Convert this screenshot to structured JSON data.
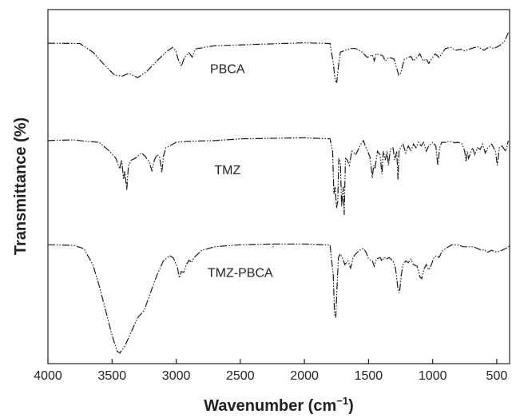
{
  "chart_data": {
    "type": "line",
    "title": "",
    "xlabel_main": "Wavenumber (cm",
    "xlabel_sup": "−1",
    "xlabel_end": ")",
    "ylabel": "Transmittance (%)",
    "xlim": [
      4000,
      400
    ],
    "x_reversed": true,
    "y_ticks_shown": false,
    "grid": false,
    "legend": "none",
    "x_ticks": [
      4000,
      3500,
      3000,
      2500,
      2000,
      1500,
      1000,
      500
    ],
    "x_tick_labels": [
      "4000",
      "3500",
      "3000",
      "2500",
      "2000",
      "1500",
      "1000",
      "500"
    ],
    "series_labels": [
      {
        "text": "PBCA",
        "x": 2600,
        "y": 0.82
      },
      {
        "text": "TMZ",
        "x": 2600,
        "y": 0.535
      },
      {
        "text": "TMZ-PBCA",
        "x": 2500,
        "y": 0.245
      }
    ],
    "series": [
      {
        "name": "PBCA",
        "points": [
          [
            4000,
            0.905
          ],
          [
            3750,
            0.904
          ],
          [
            3650,
            0.88
          ],
          [
            3550,
            0.84
          ],
          [
            3480,
            0.815
          ],
          [
            3420,
            0.812
          ],
          [
            3370,
            0.82
          ],
          [
            3300,
            0.808
          ],
          [
            3230,
            0.825
          ],
          [
            3150,
            0.855
          ],
          [
            3080,
            0.88
          ],
          [
            3030,
            0.893
          ],
          [
            3005,
            0.885
          ],
          [
            2985,
            0.86
          ],
          [
            2960,
            0.84
          ],
          [
            2935,
            0.865
          ],
          [
            2900,
            0.878
          ],
          [
            2875,
            0.866
          ],
          [
            2850,
            0.889
          ],
          [
            2700,
            0.898
          ],
          [
            2000,
            0.906
          ],
          [
            1800,
            0.904
          ],
          [
            1775,
            0.85
          ],
          [
            1760,
            0.8
          ],
          [
            1748,
            0.795
          ],
          [
            1735,
            0.84
          ],
          [
            1720,
            0.88
          ],
          [
            1680,
            0.885
          ],
          [
            1640,
            0.89
          ],
          [
            1600,
            0.89
          ],
          [
            1550,
            0.88
          ],
          [
            1510,
            0.865
          ],
          [
            1470,
            0.872
          ],
          [
            1455,
            0.855
          ],
          [
            1440,
            0.875
          ],
          [
            1390,
            0.87
          ],
          [
            1370,
            0.855
          ],
          [
            1340,
            0.865
          ],
          [
            1300,
            0.86
          ],
          [
            1265,
            0.815
          ],
          [
            1250,
            0.82
          ],
          [
            1220,
            0.86
          ],
          [
            1170,
            0.868
          ],
          [
            1150,
            0.855
          ],
          [
            1130,
            0.862
          ],
          [
            1100,
            0.875
          ],
          [
            1075,
            0.855
          ],
          [
            1050,
            0.86
          ],
          [
            1030,
            0.848
          ],
          [
            1010,
            0.86
          ],
          [
            980,
            0.875
          ],
          [
            950,
            0.865
          ],
          [
            930,
            0.875
          ],
          [
            900,
            0.89
          ],
          [
            860,
            0.893
          ],
          [
            820,
            0.885
          ],
          [
            780,
            0.888
          ],
          [
            750,
            0.883
          ],
          [
            700,
            0.89
          ],
          [
            650,
            0.895
          ],
          [
            600,
            0.885
          ],
          [
            560,
            0.895
          ],
          [
            520,
            0.89
          ],
          [
            480,
            0.898
          ],
          [
            440,
            0.91
          ],
          [
            410,
            0.935
          ]
        ]
      },
      {
        "name": "TMZ",
        "points": [
          [
            4000,
            0.63
          ],
          [
            3800,
            0.632
          ],
          [
            3700,
            0.628
          ],
          [
            3600,
            0.625
          ],
          [
            3520,
            0.6
          ],
          [
            3470,
            0.58
          ],
          [
            3440,
            0.55
          ],
          [
            3425,
            0.575
          ],
          [
            3410,
            0.52
          ],
          [
            3400,
            0.545
          ],
          [
            3385,
            0.49
          ],
          [
            3372,
            0.56
          ],
          [
            3350,
            0.575
          ],
          [
            3320,
            0.58
          ],
          [
            3270,
            0.595
          ],
          [
            3240,
            0.585
          ],
          [
            3210,
            0.57
          ],
          [
            3190,
            0.545
          ],
          [
            3170,
            0.575
          ],
          [
            3150,
            0.59
          ],
          [
            3130,
            0.585
          ],
          [
            3112,
            0.54
          ],
          [
            3100,
            0.585
          ],
          [
            3080,
            0.61
          ],
          [
            3000,
            0.625
          ],
          [
            2900,
            0.628
          ],
          [
            2700,
            0.63
          ],
          [
            2500,
            0.635
          ],
          [
            2000,
            0.638
          ],
          [
            1800,
            0.635
          ],
          [
            1780,
            0.6
          ],
          [
            1770,
            0.48
          ],
          [
            1760,
            0.5
          ],
          [
            1750,
            0.44
          ],
          [
            1740,
            0.46
          ],
          [
            1732,
            0.58
          ],
          [
            1720,
            0.57
          ],
          [
            1710,
            0.445
          ],
          [
            1698,
            0.5
          ],
          [
            1690,
            0.42
          ],
          [
            1680,
            0.58
          ],
          [
            1665,
            0.575
          ],
          [
            1650,
            0.56
          ],
          [
            1630,
            0.6
          ],
          [
            1600,
            0.59
          ],
          [
            1560,
            0.62
          ],
          [
            1540,
            0.63
          ],
          [
            1520,
            0.61
          ],
          [
            1490,
            0.585
          ],
          [
            1470,
            0.525
          ],
          [
            1460,
            0.56
          ],
          [
            1450,
            0.55
          ],
          [
            1430,
            0.6
          ],
          [
            1410,
            0.59
          ],
          [
            1395,
            0.535
          ],
          [
            1385,
            0.6
          ],
          [
            1370,
            0.575
          ],
          [
            1355,
            0.6
          ],
          [
            1345,
            0.56
          ],
          [
            1330,
            0.605
          ],
          [
            1310,
            0.61
          ],
          [
            1295,
            0.575
          ],
          [
            1280,
            0.6
          ],
          [
            1270,
            0.52
          ],
          [
            1262,
            0.6
          ],
          [
            1250,
            0.61
          ],
          [
            1230,
            0.62
          ],
          [
            1210,
            0.595
          ],
          [
            1190,
            0.615
          ],
          [
            1170,
            0.6
          ],
          [
            1150,
            0.62
          ],
          [
            1130,
            0.61
          ],
          [
            1110,
            0.625
          ],
          [
            1090,
            0.615
          ],
          [
            1070,
            0.625
          ],
          [
            1050,
            0.6
          ],
          [
            1030,
            0.615
          ],
          [
            1000,
            0.625
          ],
          [
            975,
            0.615
          ],
          [
            960,
            0.56
          ],
          [
            945,
            0.61
          ],
          [
            930,
            0.625
          ],
          [
            900,
            0.625
          ],
          [
            880,
            0.627
          ],
          [
            850,
            0.627
          ],
          [
            830,
            0.624
          ],
          [
            800,
            0.625
          ],
          [
            770,
            0.62
          ],
          [
            750,
            0.6
          ],
          [
            740,
            0.57
          ],
          [
            730,
            0.6
          ],
          [
            720,
            0.58
          ],
          [
            700,
            0.6
          ],
          [
            690,
            0.61
          ],
          [
            670,
            0.59
          ],
          [
            650,
            0.61
          ],
          [
            630,
            0.605
          ],
          [
            610,
            0.62
          ],
          [
            590,
            0.595
          ],
          [
            570,
            0.61
          ],
          [
            540,
            0.62
          ],
          [
            510,
            0.6
          ],
          [
            495,
            0.56
          ],
          [
            480,
            0.61
          ],
          [
            460,
            0.615
          ],
          [
            430,
            0.6
          ],
          [
            410,
            0.63
          ]
        ]
      },
      {
        "name": "TMZ-PBCA",
        "points": [
          [
            4000,
            0.336
          ],
          [
            3800,
            0.334
          ],
          [
            3720,
            0.325
          ],
          [
            3650,
            0.28
          ],
          [
            3600,
            0.22
          ],
          [
            3550,
            0.15
          ],
          [
            3500,
            0.08
          ],
          [
            3460,
            0.035
          ],
          [
            3440,
            0.03
          ],
          [
            3400,
            0.05
          ],
          [
            3350,
            0.09
          ],
          [
            3300,
            0.13
          ],
          [
            3250,
            0.15
          ],
          [
            3200,
            0.2
          ],
          [
            3150,
            0.25
          ],
          [
            3100,
            0.29
          ],
          [
            3050,
            0.305
          ],
          [
            3020,
            0.298
          ],
          [
            2990,
            0.27
          ],
          [
            2975,
            0.242
          ],
          [
            2960,
            0.26
          ],
          [
            2940,
            0.258
          ],
          [
            2920,
            0.28
          ],
          [
            2900,
            0.292
          ],
          [
            2880,
            0.285
          ],
          [
            2860,
            0.3
          ],
          [
            2800,
            0.32
          ],
          [
            2700,
            0.33
          ],
          [
            2500,
            0.336
          ],
          [
            2250,
            0.338
          ],
          [
            2245,
            0.33
          ],
          [
            2240,
            0.338
          ],
          [
            2000,
            0.338
          ],
          [
            1800,
            0.335
          ],
          [
            1775,
            0.25
          ],
          [
            1765,
            0.14
          ],
          [
            1755,
            0.13
          ],
          [
            1748,
            0.2
          ],
          [
            1735,
            0.3
          ],
          [
            1720,
            0.31
          ],
          [
            1700,
            0.295
          ],
          [
            1685,
            0.28
          ],
          [
            1660,
            0.29
          ],
          [
            1640,
            0.27
          ],
          [
            1620,
            0.3
          ],
          [
            1600,
            0.31
          ],
          [
            1570,
            0.32
          ],
          [
            1540,
            0.325
          ],
          [
            1520,
            0.315
          ],
          [
            1500,
            0.295
          ],
          [
            1470,
            0.29
          ],
          [
            1455,
            0.275
          ],
          [
            1440,
            0.295
          ],
          [
            1410,
            0.3
          ],
          [
            1395,
            0.29
          ],
          [
            1380,
            0.3
          ],
          [
            1360,
            0.295
          ],
          [
            1340,
            0.3
          ],
          [
            1310,
            0.29
          ],
          [
            1290,
            0.27
          ],
          [
            1270,
            0.21
          ],
          [
            1258,
            0.2
          ],
          [
            1245,
            0.25
          ],
          [
            1230,
            0.28
          ],
          [
            1210,
            0.29
          ],
          [
            1190,
            0.285
          ],
          [
            1170,
            0.295
          ],
          [
            1150,
            0.28
          ],
          [
            1120,
            0.275
          ],
          [
            1100,
            0.245
          ],
          [
            1085,
            0.24
          ],
          [
            1070,
            0.265
          ],
          [
            1050,
            0.28
          ],
          [
            1030,
            0.265
          ],
          [
            1010,
            0.28
          ],
          [
            990,
            0.3
          ],
          [
            970,
            0.305
          ],
          [
            950,
            0.3
          ],
          [
            930,
            0.315
          ],
          [
            900,
            0.325
          ],
          [
            850,
            0.336
          ],
          [
            800,
            0.335
          ],
          [
            760,
            0.33
          ],
          [
            720,
            0.33
          ],
          [
            680,
            0.33
          ],
          [
            650,
            0.325
          ],
          [
            620,
            0.32
          ],
          [
            600,
            0.322
          ],
          [
            570,
            0.315
          ],
          [
            540,
            0.32
          ],
          [
            500,
            0.315
          ],
          [
            460,
            0.32
          ],
          [
            430,
            0.325
          ],
          [
            400,
            0.332
          ]
        ]
      }
    ]
  }
}
